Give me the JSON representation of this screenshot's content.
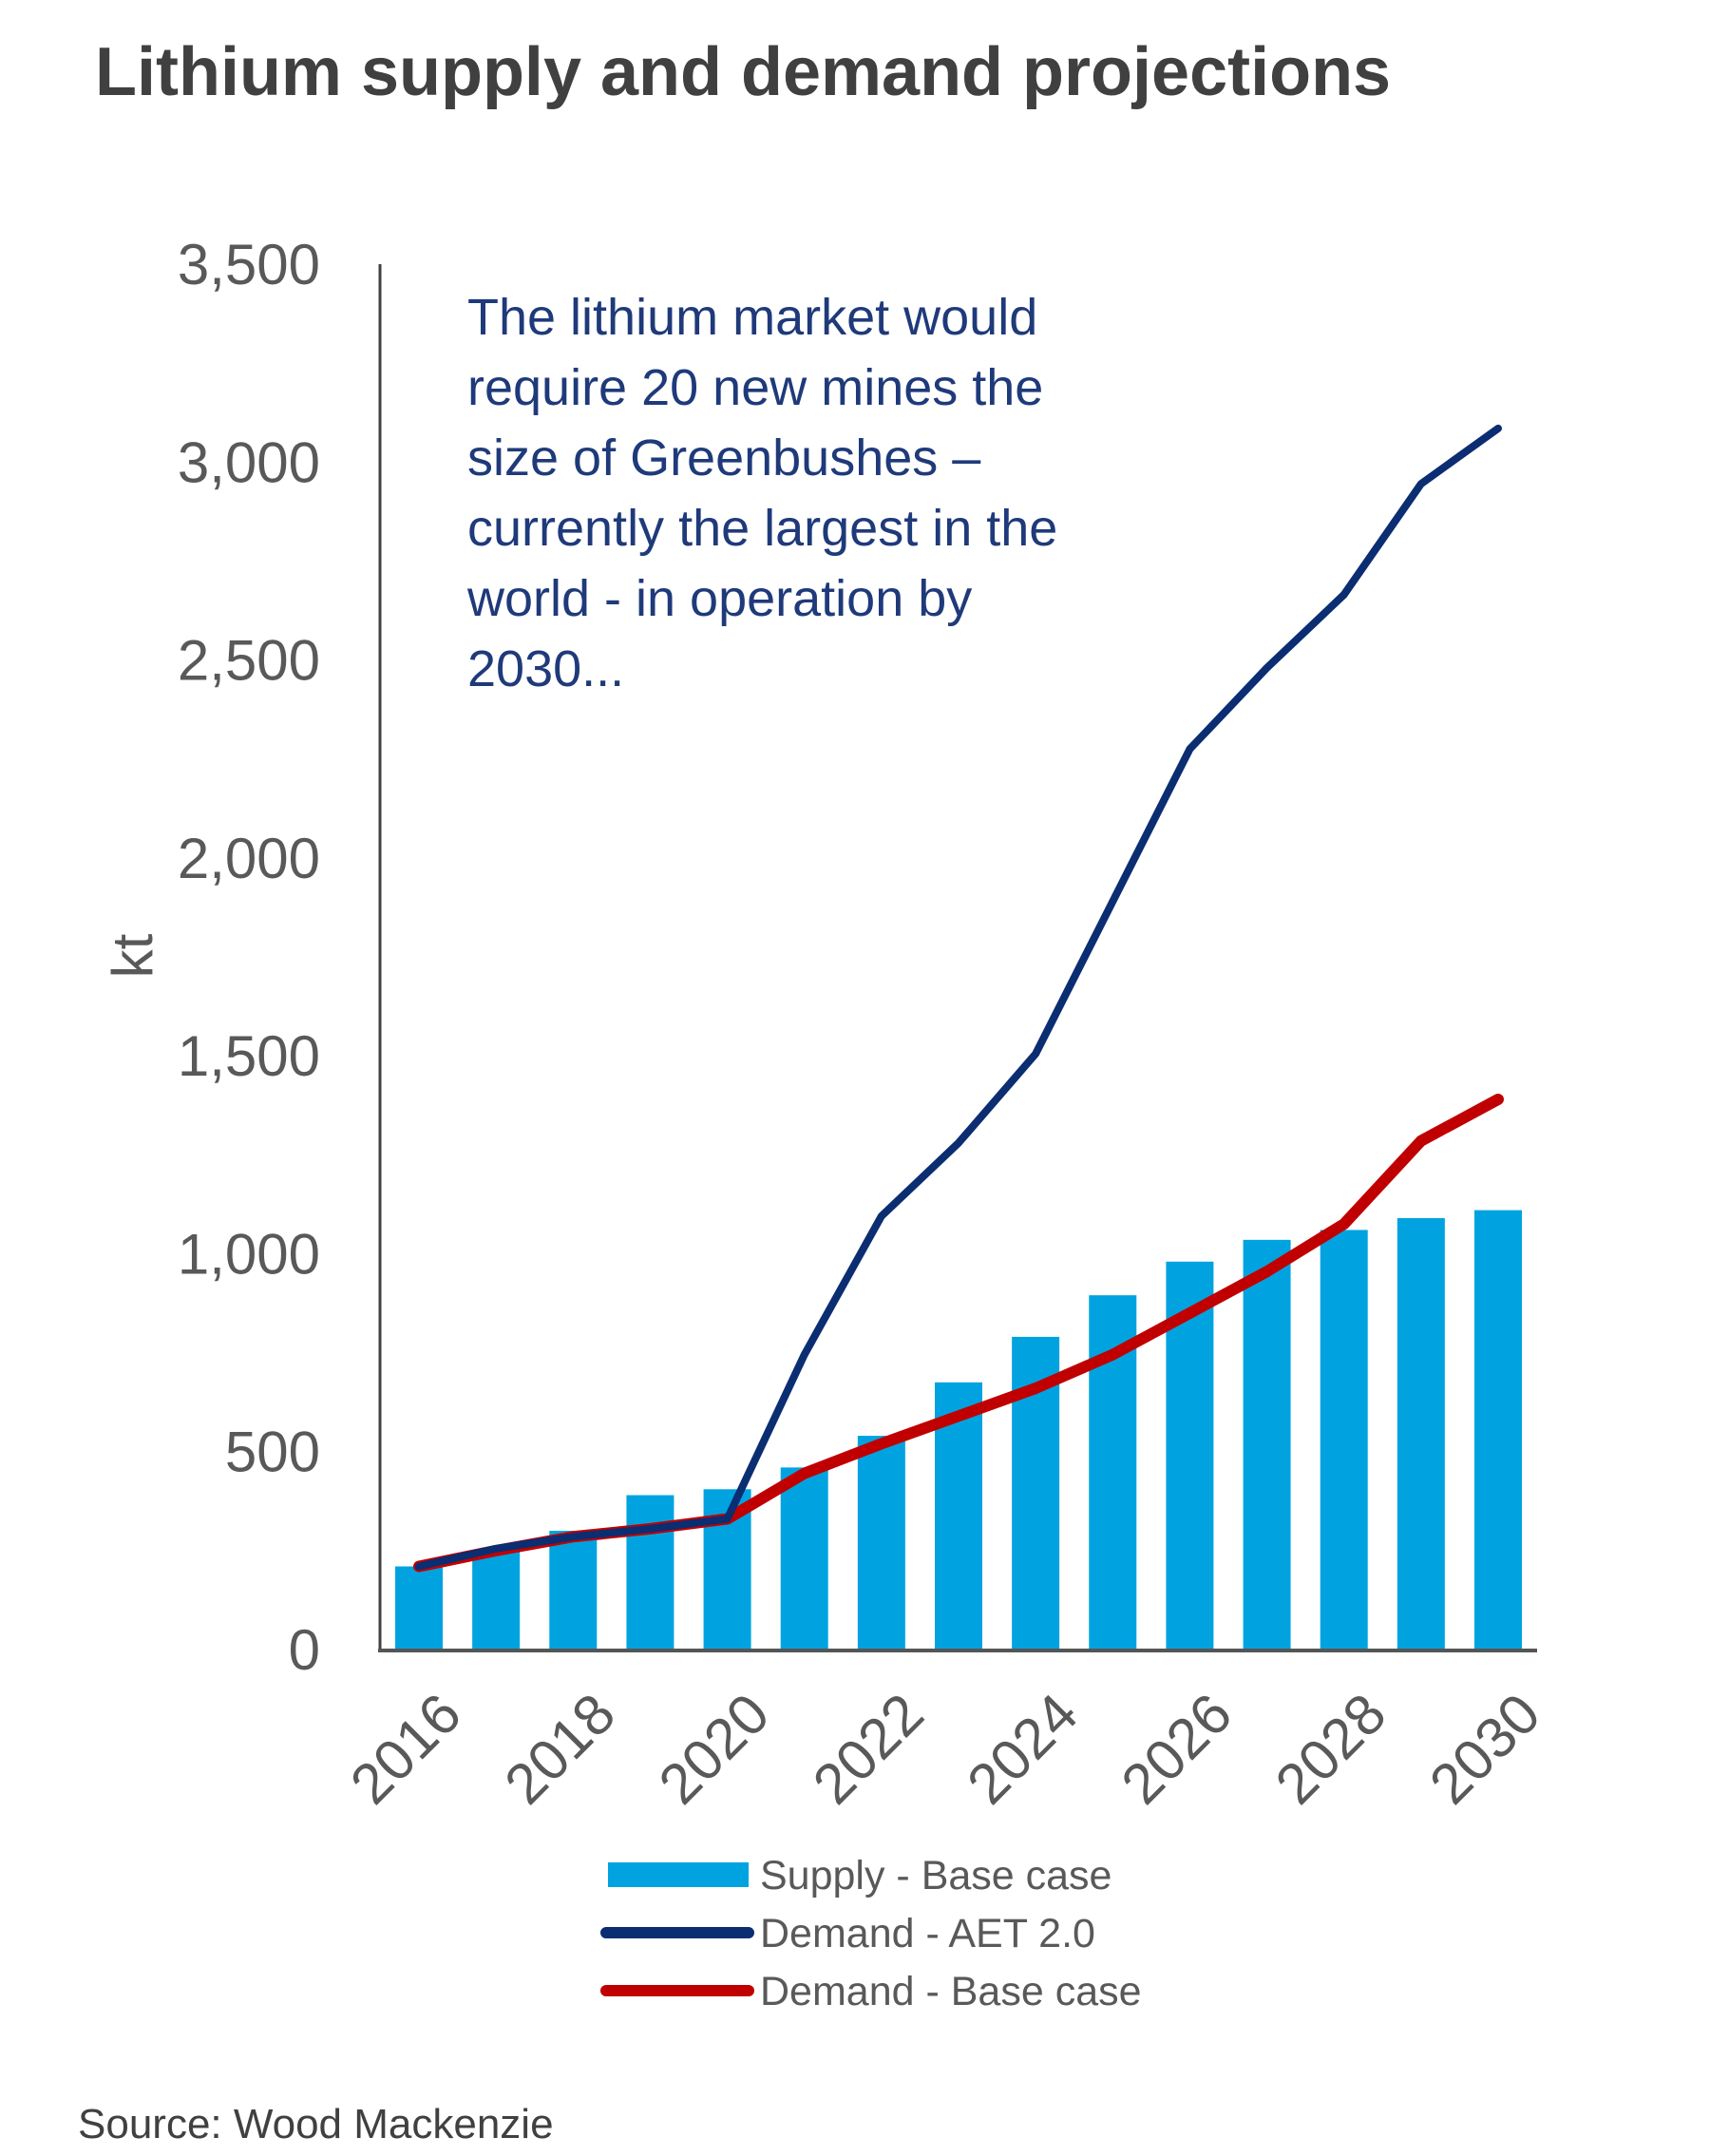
{
  "chart_data": {
    "type": "bar",
    "title": "Lithium supply and demand projections",
    "xlabel": "",
    "ylabel": "kt",
    "ylim": [
      0,
      3500
    ],
    "yticks": [
      0,
      500,
      1000,
      1500,
      2000,
      2500,
      3000,
      3500
    ],
    "ytick_labels": [
      "0",
      "500",
      "1,000",
      "1,500",
      "2,000",
      "2,500",
      "3,000",
      "3,500"
    ],
    "x": [
      2016,
      2017,
      2018,
      2019,
      2020,
      2021,
      2022,
      2023,
      2024,
      2025,
      2026,
      2027,
      2028,
      2029,
      2030
    ],
    "xtick_labels": [
      "2016",
      "2018",
      "2020",
      "2022",
      "2024",
      "2026",
      "2028",
      "2030"
    ],
    "grid": false,
    "legend_position": "bottom",
    "series": [
      {
        "name": "Supply - Base case",
        "kind": "bar",
        "color": "#00a3e0",
        "values": [
          210,
          250,
          300,
          390,
          405,
          460,
          540,
          675,
          790,
          895,
          980,
          1035,
          1060,
          1090,
          1110
        ]
      },
      {
        "name": "Demand - AET 2.0",
        "kind": "line",
        "color": "#0b2d72",
        "values": [
          210,
          255,
          285,
          305,
          330,
          745,
          1095,
          1280,
          1505,
          1890,
          2275,
          2480,
          2665,
          2945,
          3085
        ]
      },
      {
        "name": "Demand - Base case",
        "kind": "line",
        "color": "#c00000",
        "values": [
          210,
          250,
          285,
          305,
          330,
          445,
          520,
          590,
          660,
          745,
          850,
          955,
          1075,
          1285,
          1390
        ]
      }
    ],
    "annotation": [
      "The lithium market would",
      "require 20 new mines the",
      "size of Greenbushes  –",
      "currently the largest in the",
      "world - in operation by",
      "2030..."
    ],
    "source": "Source: Wood Mackenzie"
  }
}
